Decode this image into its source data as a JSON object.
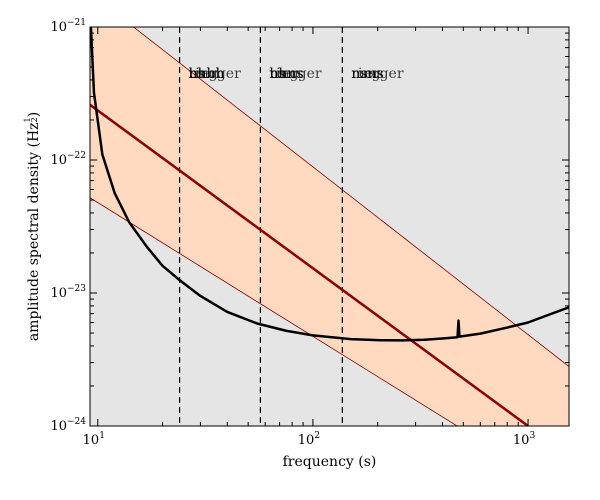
{
  "chart_data": {
    "type": "line",
    "xlabel": "frequency (s)",
    "ylabel": "amplitude spectral density (Hz",
    "ylabel_exp_num": "1",
    "ylabel_exp_den": "2",
    "ylabel_close": ")",
    "xscale": "log",
    "yscale": "log",
    "xlim": [
      9.2,
      1550
    ],
    "ylim": [
      1e-24,
      1e-21
    ],
    "xticks": [
      {
        "value": 10,
        "base": "10",
        "exp": "1"
      },
      {
        "value": 100,
        "base": "10",
        "exp": "2"
      },
      {
        "value": 1000,
        "base": "10",
        "exp": "3"
      }
    ],
    "yticks": [
      {
        "value": 1e-24,
        "base": "10",
        "exp": "−24"
      },
      {
        "value": 1e-23,
        "base": "10",
        "exp": "−23"
      },
      {
        "value": 1e-22,
        "base": "10",
        "exp": "−22"
      },
      {
        "value": 1e-21,
        "base": "10",
        "exp": "−21"
      }
    ],
    "background_color": "#e5e5e5",
    "band_color": "#ffdac0",
    "signal_color": "#8b0000",
    "noise_color": "#000000",
    "band": {
      "lower": [
        {
          "x": 9.2,
          "y": 5.2e-23
        },
        {
          "x": 1550,
          "y": 3e-25
        }
      ],
      "upper": [
        {
          "x": 9.2,
          "y": 1.8e-21
        },
        {
          "x": 1550,
          "y": 2.8e-24
        }
      ]
    },
    "series": [
      {
        "id": "signal",
        "points": [
          {
            "x": 9.2,
            "y": 2.6e-22
          },
          {
            "x": 1000,
            "y": 1e-24
          }
        ]
      },
      {
        "id": "noise",
        "points": [
          {
            "x": 9.2,
            "y": 1.4e-21
          },
          {
            "x": 9.6,
            "y": 3.2e-22
          },
          {
            "x": 10.5,
            "y": 1.1e-22
          },
          {
            "x": 12,
            "y": 5.6e-23
          },
          {
            "x": 14,
            "y": 3.4e-23
          },
          {
            "x": 17,
            "y": 2.2e-23
          },
          {
            "x": 20,
            "y": 1.6e-23
          },
          {
            "x": 24,
            "y": 1.25e-23
          },
          {
            "x": 30,
            "y": 9.5e-24
          },
          {
            "x": 40,
            "y": 7.2e-24
          },
          {
            "x": 55,
            "y": 5.9e-24
          },
          {
            "x": 75,
            "y": 5.2e-24
          },
          {
            "x": 100,
            "y": 4.8e-24
          },
          {
            "x": 150,
            "y": 4.5e-24
          },
          {
            "x": 200,
            "y": 4.42e-24
          },
          {
            "x": 260,
            "y": 4.4e-24
          },
          {
            "x": 330,
            "y": 4.45e-24
          },
          {
            "x": 400,
            "y": 4.55e-24
          },
          {
            "x": 470,
            "y": 4.65e-24
          },
          {
            "x": 475,
            "y": 6.2e-24
          },
          {
            "x": 480,
            "y": 4.7e-24
          },
          {
            "x": 600,
            "y": 4.95e-24
          },
          {
            "x": 800,
            "y": 5.5e-24
          },
          {
            "x": 1000,
            "y": 6e-24
          },
          {
            "x": 1200,
            "y": 6.7e-24
          },
          {
            "x": 1550,
            "y": 7.8e-24
          }
        ]
      }
    ],
    "vlines": [
      24,
      57,
      137
    ],
    "annotations": [
      {
        "x": 24,
        "label": "bhbh",
        "variants": [
          "bhbh",
          "ns",
          "merger",
          "ring"
        ]
      },
      {
        "x": 57,
        "label": "bhns",
        "variants": [
          "bhns",
          "ns",
          "merger",
          "ring"
        ]
      },
      {
        "x": 137,
        "label": "nsns",
        "variants": [
          "nsns",
          "merger",
          "ring"
        ]
      }
    ]
  }
}
